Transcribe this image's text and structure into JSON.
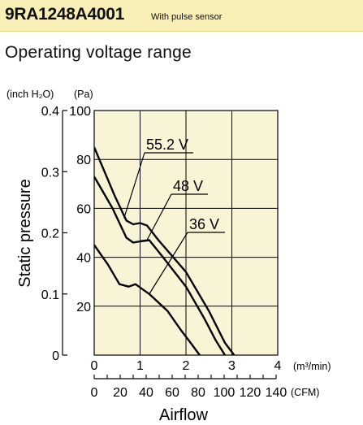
{
  "header": {
    "model": "9RA1248A4001",
    "note": "With pulse sensor"
  },
  "section_title": "Operating voltage range",
  "colors": {
    "header_bg": "#f7efb5",
    "plot_bg": "#faf4d6",
    "line": "#000000"
  },
  "chart_data": {
    "type": "line",
    "title": "",
    "xlabel": "Airflow",
    "x_unit": "(m³/min)",
    "x2_unit": "(CFM)",
    "ylabel": "Static pressure",
    "y_unit_left": "(inch H₂O)",
    "y_unit_right": "(Pa)",
    "xlim": [
      0,
      4
    ],
    "ylim": [
      0,
      100
    ],
    "x_ticks": [
      "0",
      "1",
      "2",
      "3",
      "4"
    ],
    "x2_ticks": [
      "0",
      "20",
      "40",
      "60",
      "80",
      "100",
      "120",
      "140"
    ],
    "y_ticks_pa": [
      "20",
      "40",
      "60",
      "80",
      "100"
    ],
    "y_ticks_inch": [
      "0",
      "0.1",
      "0.2",
      "0.3",
      "0.4"
    ],
    "grid": true,
    "series": [
      {
        "name": "55.2 V",
        "points": [
          [
            0,
            85
          ],
          [
            0.45,
            65
          ],
          [
            0.7,
            55
          ],
          [
            0.85,
            53.5
          ],
          [
            1.0,
            54
          ],
          [
            1.15,
            53
          ],
          [
            1.4,
            47
          ],
          [
            2.0,
            34
          ],
          [
            2.5,
            18
          ],
          [
            2.85,
            5
          ],
          [
            3.05,
            0
          ]
        ]
      },
      {
        "name": "48 V",
        "points": [
          [
            0,
            73
          ],
          [
            0.4,
            60
          ],
          [
            0.7,
            48
          ],
          [
            0.85,
            46
          ],
          [
            1.0,
            46.5
          ],
          [
            1.2,
            47
          ],
          [
            1.5,
            40
          ],
          [
            2.0,
            28
          ],
          [
            2.4,
            15
          ],
          [
            2.65,
            6
          ],
          [
            2.85,
            0
          ]
        ]
      },
      {
        "name": "36 V",
        "points": [
          [
            0,
            45
          ],
          [
            0.3,
            37
          ],
          [
            0.55,
            29
          ],
          [
            0.75,
            28
          ],
          [
            0.9,
            29
          ],
          [
            1.2,
            25
          ],
          [
            1.6,
            18
          ],
          [
            1.9,
            10
          ],
          [
            2.1,
            5
          ],
          [
            2.3,
            0
          ]
        ]
      }
    ]
  }
}
